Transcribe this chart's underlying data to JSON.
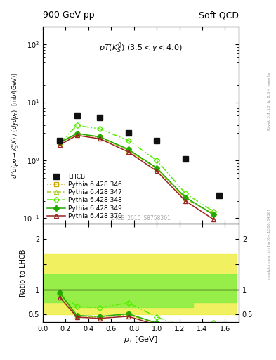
{
  "title_left": "900 GeV pp",
  "title_right": "Soft QCD",
  "annotation": "pT(K) (3.5 < y < 4.0)",
  "watermark": "LHCB_2010_S8758301",
  "right_label_top": "Rivet 3.1.10, ≥ 2.6M events",
  "right_label_bottom": "mcplots.cern.ch [arXiv:1306.3436]",
  "ylabel_main": "d²σ(pp→K°_S X) / (dydp_T)  [mb/(GeV)]",
  "ylabel_ratio": "Ratio to LHCB",
  "xlabel": "p_T [GeV]",
  "lhcb_x": [
    0.15,
    0.3,
    0.5,
    0.75,
    1.0,
    1.25,
    1.55
  ],
  "lhcb_y": [
    2.2,
    6.0,
    5.5,
    3.0,
    2.2,
    1.05,
    0.25
  ],
  "py346_x": [
    0.15,
    0.3,
    0.5,
    0.75,
    1.0,
    1.25,
    1.5
  ],
  "py346_y": [
    2.0,
    2.8,
    2.5,
    1.5,
    0.72,
    0.22,
    0.12
  ],
  "py347_x": [
    0.15,
    0.3,
    0.5,
    0.75,
    1.0,
    1.25,
    1.5
  ],
  "py347_y": [
    2.0,
    2.85,
    2.5,
    1.5,
    0.72,
    0.22,
    0.115
  ],
  "py348_x": [
    0.15,
    0.3,
    0.5,
    0.75,
    1.0,
    1.25,
    1.5
  ],
  "py348_y": [
    2.0,
    4.0,
    3.5,
    2.2,
    1.0,
    0.27,
    0.13
  ],
  "py349_x": [
    0.15,
    0.3,
    0.5,
    0.75,
    1.0,
    1.25,
    1.5
  ],
  "py349_y": [
    2.05,
    2.9,
    2.55,
    1.55,
    0.74,
    0.23,
    0.115
  ],
  "py370_x": [
    0.15,
    0.3,
    0.5,
    0.75,
    1.0,
    1.25,
    1.5
  ],
  "py370_y": [
    1.85,
    2.7,
    2.35,
    1.4,
    0.65,
    0.2,
    0.095
  ],
  "band_steps_x": [
    0.0,
    0.22,
    0.82,
    1.32,
    1.7
  ],
  "band_outer_lo": [
    0.5,
    0.5,
    0.5,
    0.5,
    0.5
  ],
  "band_outer_hi": [
    1.7,
    1.7,
    1.7,
    1.7,
    1.7
  ],
  "band_inner_lo": [
    0.75,
    0.65,
    0.65,
    0.75,
    0.75
  ],
  "band_inner_hi": [
    1.3,
    1.3,
    1.3,
    1.3,
    1.3
  ],
  "ylim_main": [
    0.08,
    200
  ],
  "ylim_ratio": [
    0.35,
    2.3
  ],
  "xlim": [
    0.0,
    1.72
  ],
  "color_346": "#ccaa00",
  "color_347": "#aacc22",
  "color_348": "#55ee00",
  "color_349": "#22aa00",
  "color_370": "#992222",
  "color_lhcb": "#111111",
  "color_band_outer": "#eeee44",
  "color_band_inner": "#88ee44"
}
